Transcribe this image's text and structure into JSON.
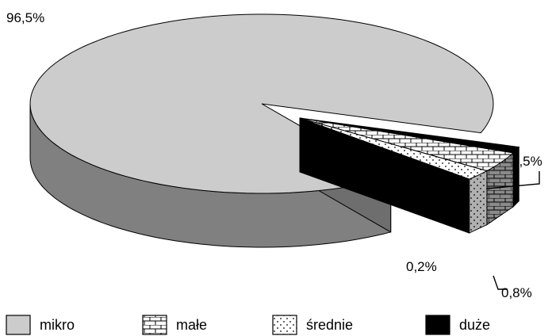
{
  "chart_data": {
    "type": "pie",
    "style": "3d-exploded",
    "categories": [
      "mikro",
      "małe",
      "średnie",
      "duże"
    ],
    "values": [
      96.5,
      2.5,
      0.8,
      0.2
    ],
    "data_labels": [
      "96,5%",
      "2,5%",
      "0,8%",
      "0,2%"
    ],
    "legend_position": "bottom",
    "colors": {
      "mikro_top": "#cccccc",
      "mikro_side": "#808080",
      "male_pattern": "brick",
      "srednie_pattern": "dotted",
      "duze": "#000000",
      "outline": "#000000"
    },
    "legend": [
      {
        "label": "mikro",
        "icon": "light-grey-swatch"
      },
      {
        "label": "małe",
        "icon": "brick-swatch"
      },
      {
        "label": "średnie",
        "icon": "dotted-swatch"
      },
      {
        "label": "duże",
        "icon": "black-swatch"
      }
    ]
  }
}
